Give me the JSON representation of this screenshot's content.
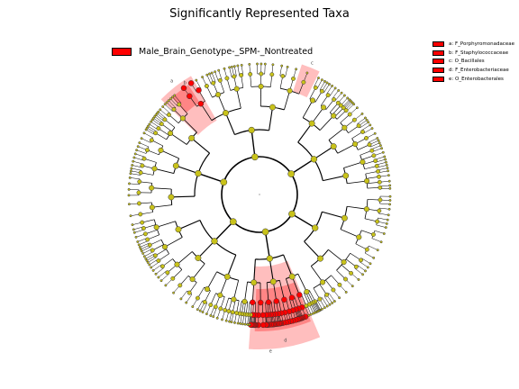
{
  "title": "Significantly Represented Taxa",
  "group_legend": {
    "label": "Male_Brain_Genotype-_SPM-_Nontreated",
    "color": "#ff0000"
  },
  "clade_legend": [
    {
      "letter": "a",
      "text": "a: F_Porphyromonadaceae"
    },
    {
      "letter": "b",
      "text": "b: F_Staphylococcaceae"
    },
    {
      "letter": "c",
      "text": "c: O_Bacillales"
    },
    {
      "letter": "d",
      "text": "d: F_Enterobacteriaceae"
    },
    {
      "letter": "e",
      "text": "e: O_Enterobacterales"
    }
  ],
  "colors": {
    "significant": "#ff0000",
    "nonsignificant": "#c8c21a",
    "edge": "#000000",
    "highlight_outer": "#ffb3b3",
    "highlight_inner": "#ff7b7b"
  }
}
